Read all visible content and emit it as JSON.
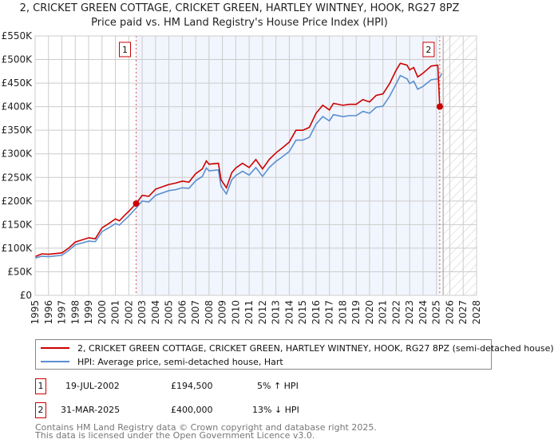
{
  "chart_data": {
    "type": "line",
    "title": "2, CRICKET GREEN COTTAGE, CRICKET GREEN, HARTLEY WINTNEY, HOOK, RG27 8PZ",
    "subtitle": "Price paid vs. HM Land Registry's House Price Index (HPI)",
    "xlim": [
      1995,
      2028
    ],
    "ylim": [
      0,
      550000
    ],
    "y_ticks": [
      {
        "v": 0,
        "label": "£0"
      },
      {
        "v": 50000,
        "label": "£50K"
      },
      {
        "v": 100000,
        "label": "£100K"
      },
      {
        "v": 150000,
        "label": "£150K"
      },
      {
        "v": 200000,
        "label": "£200K"
      },
      {
        "v": 250000,
        "label": "£250K"
      },
      {
        "v": 300000,
        "label": "£300K"
      },
      {
        "v": 350000,
        "label": "£350K"
      },
      {
        "v": 400000,
        "label": "£400K"
      },
      {
        "v": 450000,
        "label": "£450K"
      },
      {
        "v": 500000,
        "label": "£500K"
      },
      {
        "v": 550000,
        "label": "£550K"
      }
    ],
    "x_ticks": [
      "1995",
      "1996",
      "1997",
      "1998",
      "1999",
      "2000",
      "2001",
      "2002",
      "2003",
      "2004",
      "2005",
      "2006",
      "2007",
      "2008",
      "2009",
      "2010",
      "2011",
      "2012",
      "2013",
      "2014",
      "2015",
      "2016",
      "2017",
      "2018",
      "2019",
      "2020",
      "2021",
      "2022",
      "2023",
      "2024",
      "2025",
      "2026",
      "2027",
      "2028"
    ],
    "grid": true,
    "shaded_range": [
      2002.55,
      2025.25
    ],
    "hatched_from": 2025.5,
    "series": [
      {
        "name": "2, CRICKET GREEN COTTAGE, CRICKET GREEN, HARTLEY WINTNEY, HOOK, RG27 8PZ (semi-detached house)",
        "color": "#cc0000",
        "x": [
          1995,
          1995.5,
          1996,
          1997,
          1997.5,
          1998,
          1999,
          1999.5,
          2000,
          2000.5,
          2001,
          2001.3,
          2001.7,
          2002,
          2002.55,
          2003,
          2003.5,
          2004,
          2005,
          2005.5,
          2006,
          2006.5,
          2007,
          2007.5,
          2007.8,
          2008,
          2008.7,
          2008.9,
          2009.3,
          2009.7,
          2010,
          2010.5,
          2011,
          2011.5,
          2012,
          2012.5,
          2013,
          2013.5,
          2014,
          2014.5,
          2015,
          2015.5,
          2016,
          2016.5,
          2017,
          2017.3,
          2018,
          2018.5,
          2019,
          2019.5,
          2020,
          2020.5,
          2021,
          2021.5,
          2022,
          2022.3,
          2022.8,
          2023,
          2023.3,
          2023.6,
          2024,
          2024.6,
          2025.1,
          2025.25,
          2025.4
        ],
        "y": [
          82000,
          88000,
          87000,
          90000,
          100000,
          113000,
          122000,
          120000,
          143000,
          152000,
          162000,
          158000,
          170000,
          178000,
          194500,
          212000,
          210000,
          225000,
          235000,
          238000,
          242000,
          240000,
          258000,
          268000,
          285000,
          278000,
          280000,
          245000,
          228000,
          260000,
          270000,
          280000,
          271000,
          288000,
          268000,
          288000,
          302000,
          313000,
          325000,
          350000,
          350000,
          356000,
          386000,
          403000,
          393000,
          407000,
          403000,
          405000,
          405000,
          415000,
          410000,
          424000,
          427000,
          449000,
          478000,
          492000,
          488000,
          478000,
          483000,
          463000,
          471000,
          486000,
          488000,
          400000,
          407000
        ]
      },
      {
        "name": "HPI: Average price, semi-detached house, Hart",
        "color": "#5b8fd0",
        "x": [
          1995,
          1995.5,
          1996,
          1997,
          1997.5,
          1998,
          1999,
          1999.5,
          2000,
          2000.5,
          2001,
          2001.3,
          2001.7,
          2002,
          2002.55,
          2003,
          2003.5,
          2004,
          2005,
          2005.5,
          2006,
          2006.5,
          2007,
          2007.5,
          2007.8,
          2008,
          2008.7,
          2008.9,
          2009.3,
          2009.7,
          2010,
          2010.5,
          2011,
          2011.5,
          2012,
          2012.5,
          2013,
          2013.5,
          2014,
          2014.5,
          2015,
          2015.5,
          2016,
          2016.5,
          2017,
          2017.3,
          2018,
          2018.5,
          2019,
          2019.5,
          2020,
          2020.5,
          2021,
          2021.5,
          2022,
          2022.3,
          2022.8,
          2023,
          2023.3,
          2023.6,
          2024,
          2024.6,
          2025.1,
          2025.25,
          2025.4
        ],
        "y": [
          79000,
          83000,
          82000,
          85000,
          95000,
          107000,
          115000,
          114000,
          135000,
          143000,
          152000,
          149000,
          160000,
          168000,
          185000,
          200000,
          198000,
          212000,
          222000,
          224000,
          228000,
          227000,
          243000,
          252000,
          270000,
          264000,
          266000,
          231000,
          215000,
          245000,
          254000,
          263000,
          255000,
          271000,
          252000,
          271000,
          284000,
          294000,
          305000,
          329000,
          329000,
          335000,
          363000,
          379000,
          370000,
          383000,
          379000,
          381000,
          381000,
          390000,
          386000,
          399000,
          401000,
          422000,
          449000,
          466000,
          459000,
          449000,
          454000,
          437000,
          443000,
          457000,
          459000,
          462000,
          471000
        ]
      }
    ],
    "annotations": [
      {
        "label": "1",
        "x": 2002.55,
        "y": 194500
      },
      {
        "label": "2",
        "x": 2025.25,
        "y": 400000
      }
    ]
  },
  "legend": {
    "red_label": "2, CRICKET GREEN COTTAGE, CRICKET GREEN, HARTLEY WINTNEY, HOOK, RG27 8PZ (semi-detached house)",
    "blue_label": "HPI: Average price, semi-detached house, Hart"
  },
  "sales": [
    {
      "id": "1",
      "date": "19-JUL-2002",
      "price": "£194,500",
      "hpi": "5% ↑ HPI"
    },
    {
      "id": "2",
      "date": "31-MAR-2025",
      "price": "£400,000",
      "hpi": "13% ↓ HPI"
    }
  ],
  "footer": {
    "line1": "Contains HM Land Registry data © Crown copyright and database right 2025.",
    "line2": "This data is licensed under the Open Government Licence v3.0."
  }
}
